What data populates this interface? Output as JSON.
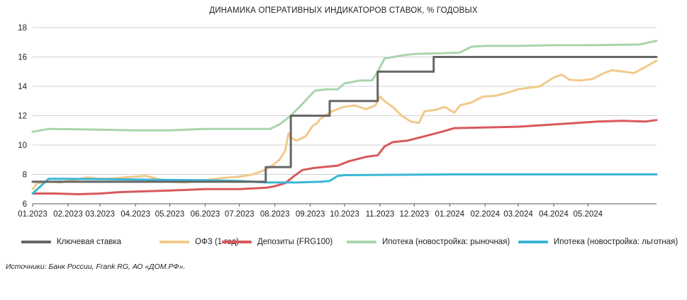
{
  "chart_data": {
    "type": "line",
    "title": "ДИНАМИКА ОПЕРАТИВНЫХ ИНДИКАТОРОВ СТАВОК, % ГОДОВЫХ",
    "xlabel": "",
    "ylabel": "",
    "xlim": [
      "2023-01-01",
      "2024-06-30"
    ],
    "ylim": [
      6,
      18
    ],
    "yticks": [
      6,
      8,
      10,
      12,
      14,
      16,
      18
    ],
    "x_tick_labels": [
      "01.2023",
      "02.2023",
      "03.2023",
      "04.2023",
      "05.2023",
      "06.2023",
      "07.2023",
      "08.2023",
      "09.2023",
      "10.2023",
      "11.2023",
      "12.2023",
      "01.2024",
      "02.2024",
      "03.2024",
      "04.2024",
      "05.2024"
    ],
    "x_ticks": [
      "2023-01-01",
      "2023-02-01",
      "2023-03-01",
      "2023-04-01",
      "2023-05-01",
      "2023-06-01",
      "2023-07-01",
      "2023-08-01",
      "2023-09-01",
      "2023-10-01",
      "2023-11-01",
      "2023-12-01",
      "2024-01-01",
      "2024-02-01",
      "2024-03-01",
      "2024-04-01",
      "2024-05-01"
    ],
    "grid": "horizontal",
    "legend_position": "bottom",
    "series": [
      {
        "name": "Ключевая ставка",
        "color": "#666666",
        "step": true,
        "points": [
          [
            "2023-01-01",
            7.5
          ],
          [
            "2023-07-24",
            7.5
          ],
          [
            "2023-07-24",
            8.5
          ],
          [
            "2023-08-15",
            8.5
          ],
          [
            "2023-08-15",
            12.0
          ],
          [
            "2023-09-18",
            12.0
          ],
          [
            "2023-09-18",
            13.0
          ],
          [
            "2023-10-30",
            13.0
          ],
          [
            "2023-10-30",
            15.0
          ],
          [
            "2023-12-18",
            15.0
          ],
          [
            "2023-12-18",
            16.0
          ],
          [
            "2024-06-30",
            16.0
          ]
        ]
      },
      {
        "name": "ОФЗ (1 год)",
        "color": "#f2c98a",
        "points": [
          [
            "2023-01-01",
            7.0
          ],
          [
            "2023-01-05",
            7.4
          ],
          [
            "2023-01-15",
            7.5
          ],
          [
            "2023-01-25",
            7.45
          ],
          [
            "2023-02-05",
            7.6
          ],
          [
            "2023-02-18",
            7.8
          ],
          [
            "2023-03-01",
            7.7
          ],
          [
            "2023-03-15",
            7.75
          ],
          [
            "2023-04-01",
            7.85
          ],
          [
            "2023-04-10",
            7.9
          ],
          [
            "2023-04-20",
            7.7
          ],
          [
            "2023-05-01",
            7.5
          ],
          [
            "2023-05-15",
            7.45
          ],
          [
            "2023-06-01",
            7.6
          ],
          [
            "2023-06-15",
            7.75
          ],
          [
            "2023-07-01",
            7.85
          ],
          [
            "2023-07-10",
            7.95
          ],
          [
            "2023-07-20",
            8.2
          ],
          [
            "2023-07-28",
            8.5
          ],
          [
            "2023-08-05",
            9.0
          ],
          [
            "2023-08-10",
            9.6
          ],
          [
            "2023-08-13",
            10.8
          ],
          [
            "2023-08-15",
            10.5
          ],
          [
            "2023-08-20",
            10.3
          ],
          [
            "2023-08-28",
            10.6
          ],
          [
            "2023-09-03",
            11.3
          ],
          [
            "2023-09-07",
            11.5
          ],
          [
            "2023-09-10",
            11.8
          ],
          [
            "2023-09-14",
            12.0
          ],
          [
            "2023-09-20",
            12.3
          ],
          [
            "2023-09-30",
            12.6
          ],
          [
            "2023-10-10",
            12.7
          ],
          [
            "2023-10-20",
            12.45
          ],
          [
            "2023-10-28",
            12.7
          ],
          [
            "2023-11-01",
            13.3
          ],
          [
            "2023-11-05",
            13.0
          ],
          [
            "2023-11-12",
            12.6
          ],
          [
            "2023-11-20",
            12.0
          ],
          [
            "2023-11-28",
            11.6
          ],
          [
            "2023-12-05",
            11.5
          ],
          [
            "2023-12-10",
            12.3
          ],
          [
            "2023-12-20",
            12.4
          ],
          [
            "2023-12-28",
            12.6
          ],
          [
            "2024-01-05",
            12.2
          ],
          [
            "2024-01-10",
            12.7
          ],
          [
            "2024-01-20",
            12.9
          ],
          [
            "2024-01-30",
            13.3
          ],
          [
            "2024-02-10",
            13.35
          ],
          [
            "2024-02-20",
            13.55
          ],
          [
            "2024-03-01",
            13.8
          ],
          [
            "2024-03-10",
            13.9
          ],
          [
            "2024-03-20",
            14.0
          ],
          [
            "2024-04-01",
            14.6
          ],
          [
            "2024-04-08",
            14.8
          ],
          [
            "2024-04-15",
            14.45
          ],
          [
            "2024-04-25",
            14.4
          ],
          [
            "2024-05-05",
            14.5
          ],
          [
            "2024-05-15",
            14.9
          ],
          [
            "2024-05-22",
            15.1
          ],
          [
            "2024-06-01",
            15.0
          ],
          [
            "2024-06-10",
            14.9
          ],
          [
            "2024-06-20",
            15.3
          ],
          [
            "2024-06-30",
            15.75
          ]
        ]
      },
      {
        "name": "Депозиты (FRG100)",
        "color": "#d9585c",
        "points": [
          [
            "2023-01-01",
            6.7
          ],
          [
            "2023-01-20",
            6.7
          ],
          [
            "2023-02-10",
            6.65
          ],
          [
            "2023-03-01",
            6.7
          ],
          [
            "2023-03-20",
            6.8
          ],
          [
            "2023-04-10",
            6.85
          ],
          [
            "2023-05-01",
            6.9
          ],
          [
            "2023-06-01",
            7.0
          ],
          [
            "2023-07-01",
            7.0
          ],
          [
            "2023-07-25",
            7.1
          ],
          [
            "2023-08-01",
            7.2
          ],
          [
            "2023-08-10",
            7.4
          ],
          [
            "2023-08-18",
            7.9
          ],
          [
            "2023-08-25",
            8.3
          ],
          [
            "2023-09-05",
            8.45
          ],
          [
            "2023-09-25",
            8.6
          ],
          [
            "2023-10-05",
            8.9
          ],
          [
            "2023-10-20",
            9.2
          ],
          [
            "2023-10-30",
            9.3
          ],
          [
            "2023-11-05",
            9.9
          ],
          [
            "2023-11-12",
            10.2
          ],
          [
            "2023-11-25",
            10.3
          ],
          [
            "2023-12-10",
            10.6
          ],
          [
            "2023-12-25",
            10.9
          ],
          [
            "2024-01-05",
            11.15
          ],
          [
            "2024-02-01",
            11.2
          ],
          [
            "2024-03-01",
            11.25
          ],
          [
            "2024-04-01",
            11.4
          ],
          [
            "2024-04-20",
            11.5
          ],
          [
            "2024-05-10",
            11.6
          ],
          [
            "2024-06-01",
            11.65
          ],
          [
            "2024-06-20",
            11.6
          ],
          [
            "2024-06-30",
            11.7
          ]
        ]
      },
      {
        "name": "Ипотека (новостройка: рыночная)",
        "color": "#a9d5ad",
        "points": [
          [
            "2023-01-01",
            10.9
          ],
          [
            "2023-01-15",
            11.1
          ],
          [
            "2023-03-01",
            11.05
          ],
          [
            "2023-04-01",
            11.0
          ],
          [
            "2023-05-01",
            11.0
          ],
          [
            "2023-05-15",
            11.05
          ],
          [
            "2023-06-01",
            11.1
          ],
          [
            "2023-07-01",
            11.1
          ],
          [
            "2023-07-28",
            11.1
          ],
          [
            "2023-08-05",
            11.4
          ],
          [
            "2023-08-15",
            12.0
          ],
          [
            "2023-08-25",
            12.8
          ],
          [
            "2023-09-05",
            13.7
          ],
          [
            "2023-09-15",
            13.8
          ],
          [
            "2023-09-25",
            13.8
          ],
          [
            "2023-10-01",
            14.2
          ],
          [
            "2023-10-15",
            14.4
          ],
          [
            "2023-10-25",
            14.4
          ],
          [
            "2023-10-30",
            15.0
          ],
          [
            "2023-11-05",
            15.9
          ],
          [
            "2023-11-20",
            16.1
          ],
          [
            "2023-12-01",
            16.2
          ],
          [
            "2023-12-25",
            16.25
          ],
          [
            "2024-01-10",
            16.3
          ],
          [
            "2024-01-20",
            16.7
          ],
          [
            "2024-02-01",
            16.75
          ],
          [
            "2024-03-01",
            16.75
          ],
          [
            "2024-04-01",
            16.8
          ],
          [
            "2024-05-01",
            16.8
          ],
          [
            "2024-06-15",
            16.85
          ],
          [
            "2024-06-30",
            17.1
          ]
        ]
      },
      {
        "name": "Ипотека (новостройка: льготная)",
        "color": "#3bb6d6",
        "points": [
          [
            "2023-01-01",
            6.7
          ],
          [
            "2023-01-08",
            7.2
          ],
          [
            "2023-01-15",
            7.7
          ],
          [
            "2023-02-01",
            7.7
          ],
          [
            "2023-04-01",
            7.65
          ],
          [
            "2023-06-01",
            7.6
          ],
          [
            "2023-07-01",
            7.55
          ],
          [
            "2023-07-25",
            7.45
          ],
          [
            "2023-08-20",
            7.45
          ],
          [
            "2023-09-10",
            7.5
          ],
          [
            "2023-09-18",
            7.55
          ],
          [
            "2023-09-25",
            7.9
          ],
          [
            "2023-10-01",
            7.95
          ],
          [
            "2024-01-01",
            8.0
          ],
          [
            "2024-06-30",
            8.0
          ]
        ]
      }
    ]
  },
  "source_note": "Источники: Банк России, Frank RG, АО «ДОМ.РФ»."
}
